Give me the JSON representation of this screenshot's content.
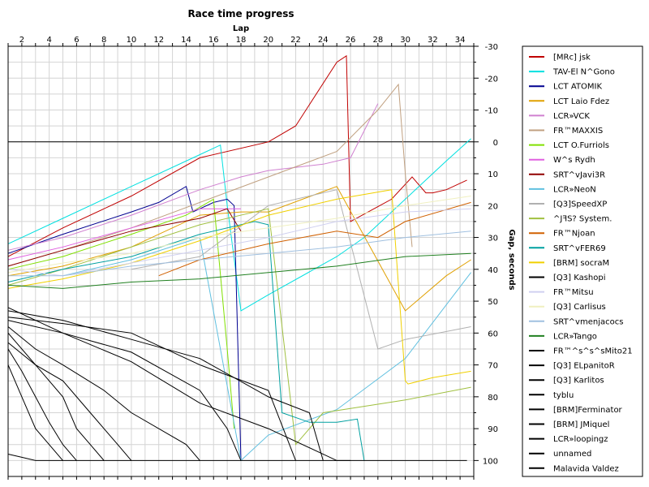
{
  "chart_data": {
    "type": "line",
    "title": "Race time progress",
    "xlabel": "Lap",
    "ylabel": "Gap, seconds",
    "xlim": [
      1,
      35
    ],
    "ylim": [
      -30,
      105
    ],
    "y_inverted": true,
    "x_ticks": [
      "2",
      "4",
      "6",
      "8",
      "10",
      "12",
      "14",
      "16",
      "18",
      "20",
      "22",
      "24",
      "26",
      "28",
      "30",
      "32",
      "34"
    ],
    "y_ticks": [
      "-30",
      "-20",
      "-10",
      "0",
      "10",
      "20",
      "30",
      "40",
      "50",
      "60",
      "70",
      "80",
      "90",
      "100"
    ],
    "grid": true,
    "legend_position": "right",
    "series": [
      {
        "name": "[MRc] jsk",
        "color": "#c00000",
        "x": [
          1,
          5,
          10,
          15,
          20,
          22,
          25,
          25.7,
          26,
          29,
          30.5,
          31.5,
          32,
          33,
          34.5
        ],
        "y": [
          36,
          27,
          17,
          5,
          0,
          -5,
          -25,
          -27,
          25,
          18,
          11,
          16,
          16,
          15,
          12
        ]
      },
      {
        "name": "TAV-El N^Gono",
        "color": "#00e0e0",
        "x": [
          1,
          5,
          10,
          15,
          16.5,
          17,
          18,
          20,
          25,
          27,
          30,
          33,
          34.8
        ],
        "y": [
          32,
          24,
          14,
          4,
          1,
          20,
          53,
          48,
          36,
          30,
          18,
          6,
          -1
        ]
      },
      {
        "name": "LCT ATOMIK",
        "color": "#000090",
        "x": [
          1,
          5,
          10,
          12,
          14,
          14.5,
          16,
          17,
          17.5,
          18
        ],
        "y": [
          35,
          29,
          22,
          19,
          14,
          22,
          19,
          18,
          20,
          100
        ]
      },
      {
        "name": "LCT Laio Fdez",
        "color": "#e0a000",
        "x": [
          1,
          5,
          10,
          15,
          18,
          20,
          25,
          30,
          33,
          34.8
        ],
        "y": [
          42,
          39,
          33,
          23,
          22,
          22,
          14,
          53,
          42,
          37
        ]
      },
      {
        "name": "LCR»VCK",
        "color": "#d080d0",
        "x": [
          1,
          5,
          10,
          15,
          18,
          20,
          22,
          24,
          26,
          28
        ],
        "y": [
          34,
          30,
          23,
          15,
          11,
          9,
          8,
          7,
          5,
          -12
        ]
      },
      {
        "name": "FR™MAXXIS",
        "color": "#c0a080",
        "x": [
          1,
          5,
          10,
          15,
          20,
          25,
          28,
          29.5,
          30,
          30.5
        ],
        "y": [
          39,
          34,
          27,
          19,
          11,
          3,
          -10,
          -18,
          10,
          33
        ]
      },
      {
        "name": "LCT O.Furriols",
        "color": "#80e000",
        "x": [
          1,
          5,
          10,
          14,
          16,
          17,
          17.5
        ],
        "y": [
          40,
          36,
          29,
          23,
          18,
          65,
          90
        ]
      },
      {
        "name": "W^s Rydh",
        "color": "#e060e0",
        "x": [
          1,
          5,
          10,
          15,
          18
        ],
        "y": [
          37,
          33,
          27,
          21,
          21
        ]
      },
      {
        "name": "SRT^vJavi3R",
        "color": "#900000",
        "x": [
          1,
          5,
          10,
          15,
          17,
          18
        ],
        "y": [
          39,
          34,
          28,
          24,
          21,
          28
        ]
      },
      {
        "name": "LCR»NeoN",
        "color": "#60c0e0",
        "x": [
          5,
          10,
          15,
          18,
          20,
          25,
          30,
          34.8
        ],
        "y": [
          42,
          37,
          30,
          100,
          92,
          84,
          68,
          41
        ]
      },
      {
        "name": "[Q3]SpeedXP",
        "color": "#b0b0b0",
        "x": [
          10,
          15,
          20,
          25,
          28,
          30,
          34.8
        ],
        "y": [
          40,
          36,
          20,
          15,
          65,
          62,
          58
        ]
      },
      {
        "name": "^JꟻS? System.",
        "color": "#a0c040",
        "x": [
          1,
          5,
          10,
          15,
          20,
          22,
          24,
          30,
          34.8
        ],
        "y": [
          45,
          40,
          33,
          26,
          21,
          95,
          85,
          81,
          77
        ]
      },
      {
        "name": "FR™Njoan",
        "color": "#d06000",
        "x": [
          12,
          15,
          20,
          25,
          28,
          30,
          34.8
        ],
        "y": [
          42,
          37,
          32,
          28,
          30,
          25,
          19
        ]
      },
      {
        "name": "SRT^vFER69",
        "color": "#00a0a0",
        "x": [
          1,
          5,
          10,
          15,
          19,
          20,
          21,
          23,
          25,
          26.5,
          27
        ],
        "y": [
          44,
          40,
          36,
          29,
          25,
          26,
          85,
          88,
          88,
          87,
          100
        ]
      },
      {
        "name": "[BRM] socraM",
        "color": "#f0d000",
        "x": [
          1,
          5,
          10,
          15,
          20,
          25,
          29,
          30,
          30.2,
          32,
          34.8
        ],
        "y": [
          46,
          43,
          38,
          31,
          23,
          18,
          15,
          75,
          76,
          74,
          72
        ]
      },
      {
        "name": "[Q3] Kashopi",
        "color": "#000000",
        "x": [
          1,
          5,
          10,
          15,
          20,
          25,
          26
        ],
        "y": [
          52,
          60,
          69,
          82,
          90,
          100,
          100
        ]
      },
      {
        "name": "FR™Mitsu",
        "color": "#d0d0f0",
        "x": [
          1,
          5,
          10,
          15,
          20,
          25,
          30,
          34.8
        ],
        "y": [
          40,
          42,
          38,
          34,
          30,
          25,
          22,
          21
        ]
      },
      {
        "name": "[Q3] Carlisus",
        "color": "#f0f0c0",
        "x": [
          1,
          5,
          10,
          15,
          20,
          25,
          30,
          34.8
        ],
        "y": [
          41,
          38,
          35,
          30,
          27,
          24,
          20,
          17
        ]
      },
      {
        "name": "SRT^vmenjacocs",
        "color": "#a0c0e0",
        "x": [
          1,
          5,
          10,
          15,
          20,
          25,
          30,
          34.8
        ],
        "y": [
          42,
          42,
          39,
          37,
          35,
          33,
          30,
          28
        ]
      },
      {
        "name": "LCR»Tango",
        "color": "#208020",
        "x": [
          1,
          5,
          10,
          15,
          20,
          25,
          30,
          34.8
        ],
        "y": [
          45,
          46,
          44,
          43,
          41,
          39,
          36,
          35
        ]
      },
      {
        "name": "FR™^s^s^sMito21",
        "color": "#000000",
        "x": [
          1,
          5,
          10,
          15,
          20,
          23,
          24
        ],
        "y": [
          53,
          56,
          62,
          68,
          80,
          85,
          100
        ]
      },
      {
        "name": "[Q3] ELpanitoR",
        "color": "#000000",
        "x": [
          1,
          5,
          10,
          15,
          20,
          22
        ],
        "y": [
          55,
          57,
          60,
          70,
          78,
          100
        ]
      },
      {
        "name": "[Q3] Karlitos",
        "color": "#000000",
        "x": [
          1,
          5,
          10,
          15,
          17,
          18
        ],
        "y": [
          56,
          60,
          66,
          78,
          90,
          100
        ]
      },
      {
        "name": "tyblu",
        "color": "#000000",
        "x": [
          1,
          3,
          5,
          8,
          10,
          14,
          15
        ],
        "y": [
          58,
          65,
          70,
          78,
          85,
          95,
          100
        ]
      },
      {
        "name": "[BRM]Ferminator",
        "color": "#000000",
        "x": [
          1,
          3,
          5,
          7,
          9,
          10
        ],
        "y": [
          60,
          70,
          75,
          85,
          95,
          100
        ]
      },
      {
        "name": "[BRM] JMiquel",
        "color": "#000000",
        "x": [
          1,
          3,
          5,
          6,
          7,
          8
        ],
        "y": [
          63,
          70,
          80,
          90,
          95,
          100
        ]
      },
      {
        "name": "LCR»loopingz",
        "color": "#000000",
        "x": [
          1,
          2,
          3,
          4,
          5,
          6
        ],
        "y": [
          65,
          72,
          80,
          88,
          95,
          100
        ]
      },
      {
        "name": "unnamed",
        "color": "#000000",
        "x": [
          1,
          2,
          3,
          4,
          5
        ],
        "y": [
          70,
          80,
          90,
          95,
          100
        ]
      },
      {
        "name": "Malavida Valdez",
        "color": "#000000",
        "x": [
          1,
          2,
          3,
          34.5
        ],
        "y": [
          98,
          99,
          100,
          100
        ]
      }
    ]
  }
}
